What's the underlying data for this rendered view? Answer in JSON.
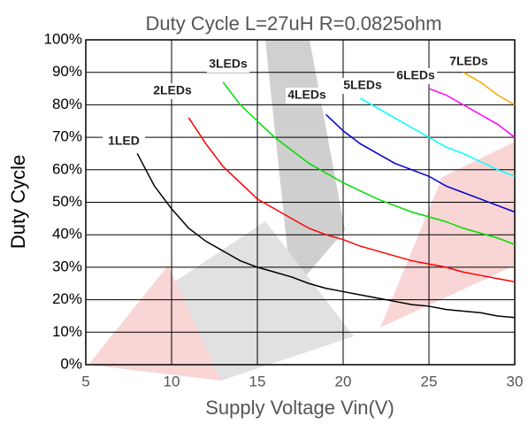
{
  "chart_data": {
    "type": "line",
    "title": "Duty Cycle L=27uH R=0.0825ohm",
    "x_label": "Supply Voltage Vin(V)",
    "y_label": "Duty Cycle",
    "x": [
      8,
      9,
      10,
      11,
      12,
      13,
      14,
      15,
      16,
      17,
      18,
      19,
      20,
      21,
      22,
      23,
      24,
      25,
      26,
      27,
      28,
      29,
      30
    ],
    "series": [
      {
        "name": "1LED",
        "color": "#000000",
        "values": [
          65,
          55,
          48,
          42,
          38,
          35,
          32,
          30,
          28.5,
          27,
          25,
          23.5,
          22.5,
          21.5,
          20.5,
          19.5,
          18.5,
          18,
          17,
          16.5,
          16,
          15,
          14.5
        ]
      },
      {
        "name": "2LEDs",
        "color": "#ff0000",
        "values": [
          null,
          null,
          null,
          76,
          68,
          61,
          56,
          51,
          48,
          45,
          42,
          40,
          38.5,
          36.5,
          35,
          33.5,
          32,
          31,
          30,
          28.5,
          27.5,
          26.5,
          25.5
        ]
      },
      {
        "name": "3LEDs",
        "color": "#00dd00",
        "values": [
          null,
          null,
          null,
          null,
          null,
          87,
          80,
          75,
          70,
          66,
          62,
          59,
          56,
          53.5,
          51,
          49,
          47,
          45.5,
          44,
          42,
          40.5,
          39,
          37
        ]
      },
      {
        "name": "4LEDs",
        "color": "#0000cc",
        "values": [
          null,
          null,
          null,
          null,
          null,
          null,
          null,
          null,
          null,
          null,
          null,
          77,
          72,
          68,
          65,
          62,
          60,
          58,
          55,
          53,
          51,
          49,
          47
        ]
      },
      {
        "name": "5LEDs",
        "color": "#00ffff",
        "values": [
          null,
          null,
          null,
          null,
          null,
          null,
          null,
          null,
          null,
          null,
          null,
          null,
          null,
          82,
          79,
          76,
          73,
          70,
          67,
          65,
          62.5,
          60,
          58
        ]
      },
      {
        "name": "6LEDs",
        "color": "#ff00ff",
        "values": [
          null,
          null,
          null,
          null,
          null,
          null,
          null,
          null,
          null,
          null,
          null,
          null,
          null,
          null,
          null,
          null,
          null,
          85,
          83,
          80,
          77,
          74,
          70
        ]
      },
      {
        "name": "7LEDs",
        "color": "#ffa500",
        "values": [
          null,
          null,
          null,
          null,
          null,
          null,
          null,
          null,
          null,
          null,
          null,
          null,
          null,
          null,
          null,
          null,
          null,
          null,
          null,
          90,
          87,
          83,
          80
        ]
      }
    ],
    "xlim": [
      5,
      30
    ],
    "xticks": [
      5,
      10,
      15,
      20,
      25,
      30
    ],
    "ylim": [
      0,
      100
    ],
    "yticks": [
      {
        "value": 0,
        "label": "0%"
      },
      {
        "value": 10,
        "label": "10%"
      },
      {
        "value": 20,
        "label": "20%"
      },
      {
        "value": 30,
        "label": "30%"
      },
      {
        "value": 40,
        "label": "40%"
      },
      {
        "value": 50,
        "label": "50%"
      },
      {
        "value": 60,
        "label": "60%"
      },
      {
        "value": 70,
        "label": "70%"
      },
      {
        "value": 80,
        "label": "80%"
      },
      {
        "value": 90,
        "label": "90%"
      },
      {
        "value": 100,
        "label": "100%"
      }
    ],
    "grid": true
  }
}
